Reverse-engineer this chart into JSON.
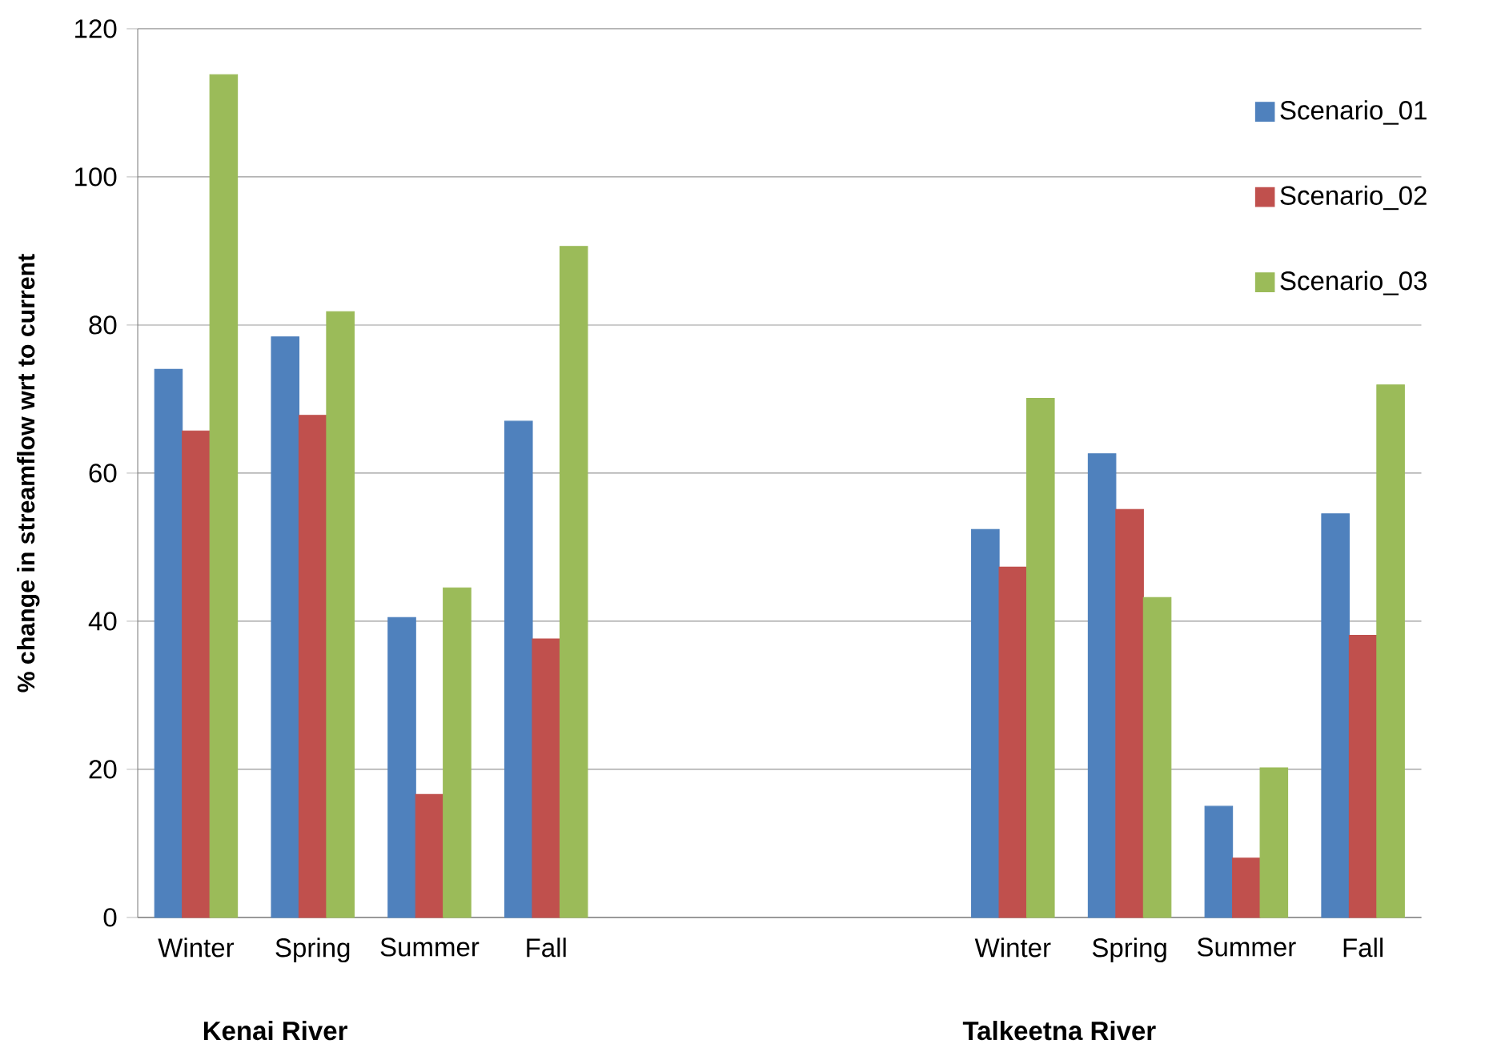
{
  "chart_data": {
    "type": "bar",
    "categories": [
      "Winter",
      "Spring",
      "Summer",
      "Fall",
      null,
      null,
      null,
      "Winter",
      "Spring",
      "Summer",
      "Fall"
    ],
    "series": [
      {
        "name": "Scenario_01",
        "color": "#4f81bd",
        "values": [
          74,
          78.4,
          40.5,
          67,
          null,
          null,
          null,
          52.4,
          62.6,
          15,
          54.5
        ]
      },
      {
        "name": "Scenario_02",
        "color": "#c0504d",
        "values": [
          65.7,
          67.8,
          16.6,
          37.6,
          null,
          null,
          null,
          47.3,
          55.1,
          8,
          38.1
        ]
      },
      {
        "name": "Scenario_03",
        "color": "#9bbb59",
        "values": [
          113.8,
          81.8,
          44.5,
          90.6,
          null,
          null,
          null,
          70.1,
          43.2,
          20.2,
          71.9
        ]
      }
    ],
    "ylabel": "% change in streamflow wrt to current",
    "ylim": [
      0,
      120
    ],
    "yticks": [
      0,
      20,
      40,
      60,
      80,
      100,
      120
    ],
    "grid": "y",
    "legend": "top right",
    "annotations": [
      "Kenai River",
      "Talkeetna River"
    ]
  }
}
